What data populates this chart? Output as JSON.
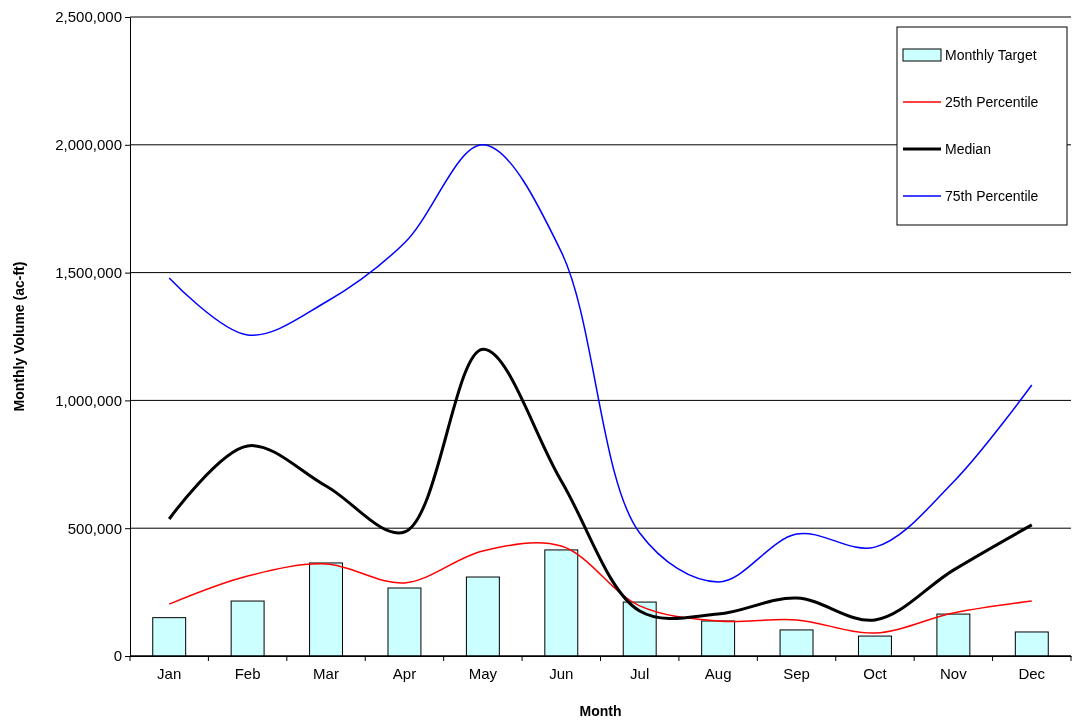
{
  "chart_data": {
    "type": "bar",
    "xlabel": "Month",
    "ylabel": "Monthly Volume (ac-ft)",
    "categories": [
      "Jan",
      "Feb",
      "Mar",
      "Apr",
      "May",
      "Jun",
      "Jul",
      "Aug",
      "Sep",
      "Oct",
      "Nov",
      "Dec"
    ],
    "series": [
      {
        "name": "Monthly Target",
        "color": "#ccffff",
        "values": [
          150000,
          215000,
          364000,
          266000,
          309000,
          415000,
          211000,
          137000,
          102000,
          78000,
          164000,
          94000
        ]
      },
      {
        "name": "25th Percentile",
        "type": "line",
        "color": "#ff0000",
        "values": [
          203000,
          313000,
          360000,
          286000,
          411000,
          430000,
          196000,
          137000,
          141000,
          90000,
          168000,
          215000
        ]
      },
      {
        "name": "Median",
        "type": "line",
        "color": "#000000",
        "values": [
          536000,
          822000,
          665000,
          485000,
          1200000,
          685000,
          176000,
          164000,
          227000,
          141000,
          336000,
          513000
        ]
      },
      {
        "name": "75th Percentile",
        "type": "line",
        "color": "#0000ff",
        "values": [
          1479000,
          1256000,
          1385000,
          1616000,
          2000000,
          1581000,
          481000,
          290000,
          477000,
          426000,
          681000,
          1060000
        ]
      }
    ],
    "ylim": [
      0,
      2500000
    ],
    "yticks": [
      {
        "value": 0,
        "label": "0"
      },
      {
        "value": 500000,
        "label": "500,000"
      },
      {
        "value": 1000000,
        "label": "1,000,000"
      },
      {
        "value": 1500000,
        "label": "1,500,000"
      },
      {
        "value": 2000000,
        "label": "2,000,000"
      },
      {
        "value": 2500000,
        "label": "2,500,000"
      }
    ],
    "grid": "y",
    "legend": "top right",
    "marker": "none",
    "line_style": "solid"
  }
}
